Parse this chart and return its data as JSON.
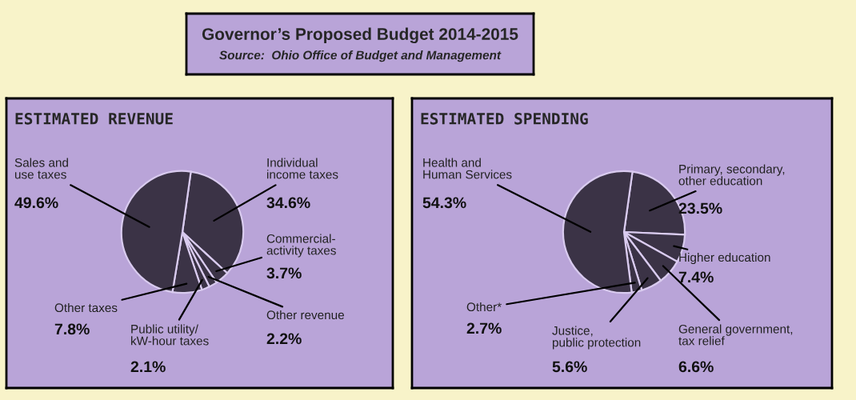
{
  "chart_data": [
    {
      "type": "other",
      "title": "Governor’s Proposed Budget 2014-2015",
      "subtitle": "Source:  Ohio Office of Budget and Management"
    },
    {
      "type": "pie",
      "title": "ESTIMATED REVENUE",
      "categories": [
        "Individual\nincome taxes",
        "Commercial-\nactivity taxes",
        "Other revenue",
        "Public utility/\nkW-hour taxes",
        "Other taxes",
        "Sales and\nuse taxes"
      ],
      "values": [
        34.6,
        3.7,
        2.2,
        2.1,
        7.8,
        49.6
      ],
      "value_labels": [
        "34.6%",
        "3.7%",
        "2.2%",
        "2.1%",
        "7.8%",
        "49.6%"
      ],
      "colors": [
        "#3b3346",
        "#3b3346",
        "#3b3346",
        "#3b3346",
        "#3b3346",
        "#3b3346"
      ]
    },
    {
      "type": "pie",
      "title": "ESTIMATED SPENDING",
      "categories": [
        "Primary, secondary,\nother education",
        "Higher education",
        "General government,\ntax relief",
        "Justice,\npublic protection",
        "Other*",
        "Health and\nHuman Services"
      ],
      "values": [
        23.5,
        7.4,
        6.6,
        5.6,
        2.7,
        54.3
      ],
      "value_labels": [
        "23.5%",
        "7.4%",
        "6.6%",
        "5.6%",
        "2.7%",
        "54.3%"
      ],
      "colors": [
        "#3b3346",
        "#3b3346",
        "#3b3346",
        "#3b3346",
        "#3b3346",
        "#3b3346"
      ]
    }
  ]
}
